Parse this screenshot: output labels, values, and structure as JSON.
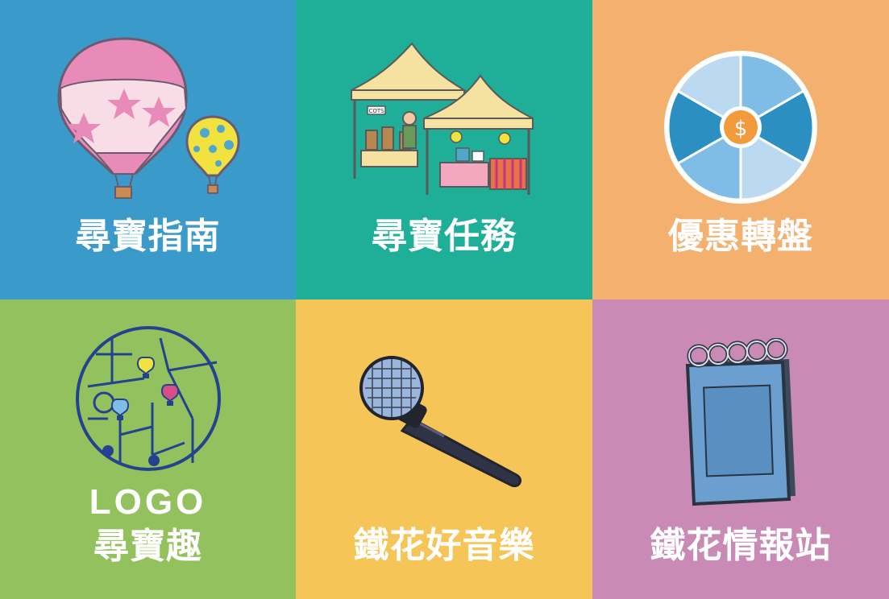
{
  "tiles": [
    {
      "id": "guide",
      "label": "尋寶指南",
      "color": "#3a9bcb",
      "icon": "hot-air-balloons-icon"
    },
    {
      "id": "mission",
      "label": "尋寶任務",
      "color": "#1fae97",
      "icon": "market-tents-icon"
    },
    {
      "id": "wheel",
      "label": "優惠轉盤",
      "color": "#f4b06f",
      "icon": "prize-wheel-icon"
    },
    {
      "id": "logo",
      "label_line1": "LOGO",
      "label_line2": "尋寶趣",
      "color": "#93c15e",
      "icon": "lantern-logo-icon"
    },
    {
      "id": "music",
      "label": "鐵花好音樂",
      "color": "#f5c557",
      "icon": "microphone-icon"
    },
    {
      "id": "info",
      "label": "鐵花情報站",
      "color": "#c98bb6",
      "icon": "notebook-icon"
    }
  ],
  "wheel": {
    "center_symbol": "$"
  },
  "tent": {
    "sign": "COTS"
  }
}
